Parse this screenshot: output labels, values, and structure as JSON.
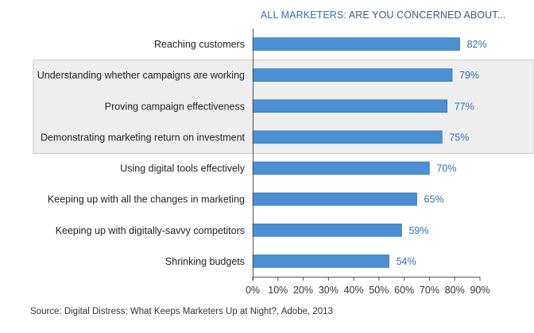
{
  "chart_data": {
    "type": "bar",
    "orientation": "horizontal",
    "title_highlight": "ALL MARKETERS:",
    "title_rest": " ARE YOU CONCERNED ABOUT...",
    "categories": [
      "Reaching customers",
      "Understanding whether campaigns are working",
      "Proving campaign effectiveness",
      "Demonstrating marketing return on investment",
      "Using digital tools effectively",
      "Keeping up with all the changes in marketing",
      "Keeping up with digitally-savvy competitors",
      "Shrinking budgets"
    ],
    "values": [
      82,
      79,
      77,
      75,
      70,
      65,
      59,
      54
    ],
    "value_labels": [
      "82%",
      "79%",
      "77%",
      "75%",
      "70%",
      "65%",
      "59%",
      "54%"
    ],
    "highlighted_categories": [
      1,
      2,
      3
    ],
    "xlim": [
      0,
      90
    ],
    "xticks": [
      0,
      10,
      20,
      30,
      40,
      50,
      60,
      70,
      80,
      90
    ],
    "xtick_labels": [
      "0%",
      "10%",
      "20%",
      "30%",
      "40%",
      "50%",
      "60%",
      "70%",
      "80%",
      "90%"
    ],
    "grid": false,
    "source": "Source: Digital Distress: What Keeps Marketers Up at Night?, Adobe, 2013"
  },
  "colors": {
    "bar": "#4a90d2",
    "bar_stroke": "#2f6fa8",
    "value_label": "#2f6fb6",
    "highlight_band": "#eeeeee",
    "highlight_border": "#c9c9c9",
    "axis": "#555555",
    "category_text": "#222222",
    "tick_text": "#333333"
  }
}
